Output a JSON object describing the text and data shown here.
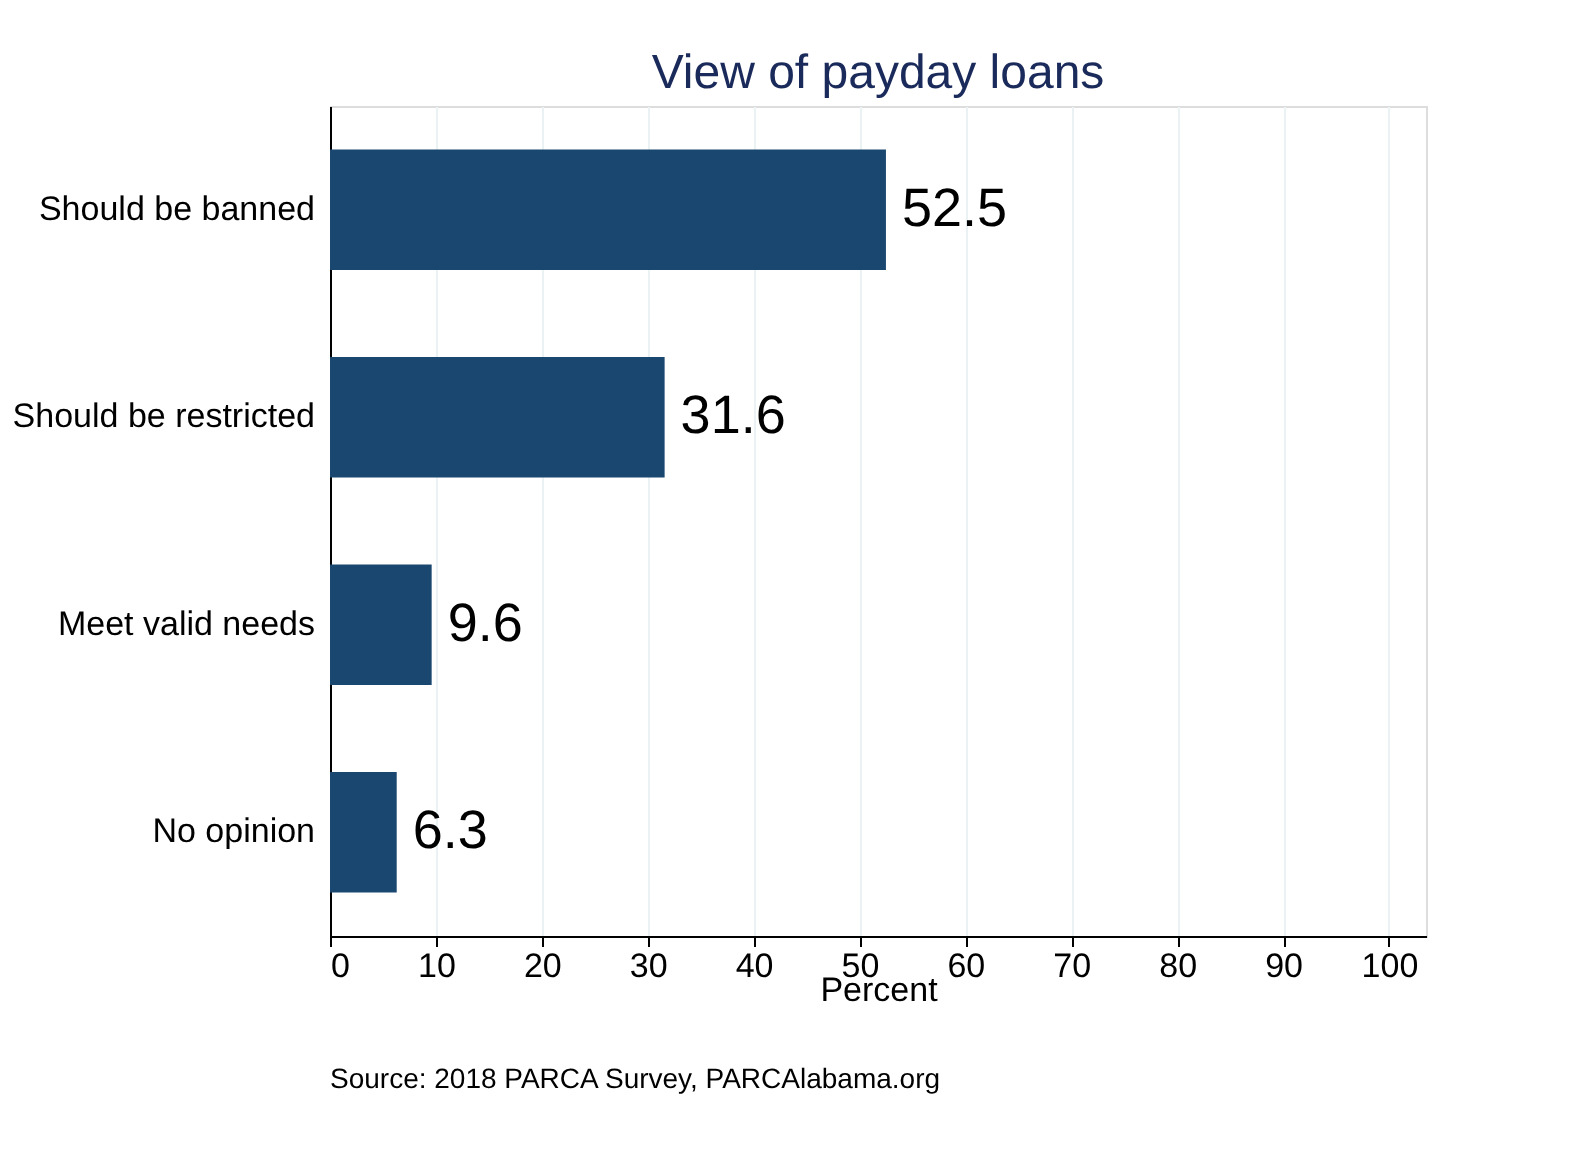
{
  "chart_data": {
    "type": "bar",
    "orientation": "horizontal",
    "title": "View of payday loans",
    "xlabel": "Percent",
    "categories": [
      "Should be banned",
      "Should be restricted",
      "Meet valid needs",
      "No opinion"
    ],
    "values": [
      52.5,
      31.6,
      9.6,
      6.3
    ],
    "color": "#1a476f",
    "data_labels": true,
    "xlim": [
      0,
      103.5
    ],
    "xticks": [
      0,
      10,
      20,
      30,
      40,
      50,
      60,
      70,
      80,
      90,
      100
    ],
    "grid": "x",
    "annotations": [
      "Source: 2018 PARCA Survey, PARCAlabama.org"
    ]
  }
}
